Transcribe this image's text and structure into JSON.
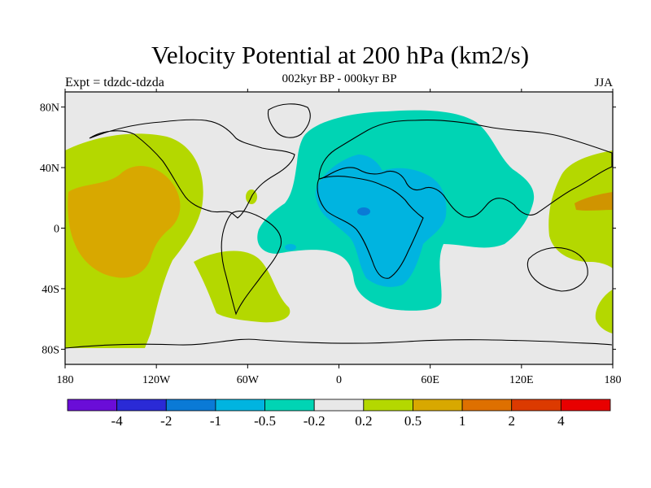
{
  "title": "Velocity Potential at 200 hPa (km2/s)",
  "subtitle": "002kyr BP - 000kyr BP",
  "left_label": "Expt = tdzdc-tdzda",
  "right_label": "JJA",
  "axes": {
    "lon_ticks": [
      {
        "lon": -180,
        "label": "180"
      },
      {
        "lon": -120,
        "label": "120W"
      },
      {
        "lon": -60,
        "label": "60W"
      },
      {
        "lon": 0,
        "label": "0"
      },
      {
        "lon": 60,
        "label": "60E"
      },
      {
        "lon": 120,
        "label": "120E"
      },
      {
        "lon": 180,
        "label": "180"
      }
    ],
    "lat_ticks": [
      {
        "lat": 80,
        "label": "80N"
      },
      {
        "lat": 40,
        "label": "40N"
      },
      {
        "lat": 0,
        "label": "0"
      },
      {
        "lat": -40,
        "label": "40S"
      },
      {
        "lat": -80,
        "label": "80S"
      }
    ]
  },
  "colorbar": {
    "colors": [
      "#6a0dd8",
      "#2a2ad6",
      "#0a7ad6",
      "#00b4e0",
      "#00d4b4",
      "#e8e8e8",
      "#b4d800",
      "#d8a800",
      "#de7000",
      "#dc3a00",
      "#e80000"
    ],
    "labels": [
      "-4",
      "-2",
      "-1",
      "-0.5",
      "-0.2",
      "0.2",
      "0.5",
      "1",
      "2",
      "4"
    ]
  }
}
